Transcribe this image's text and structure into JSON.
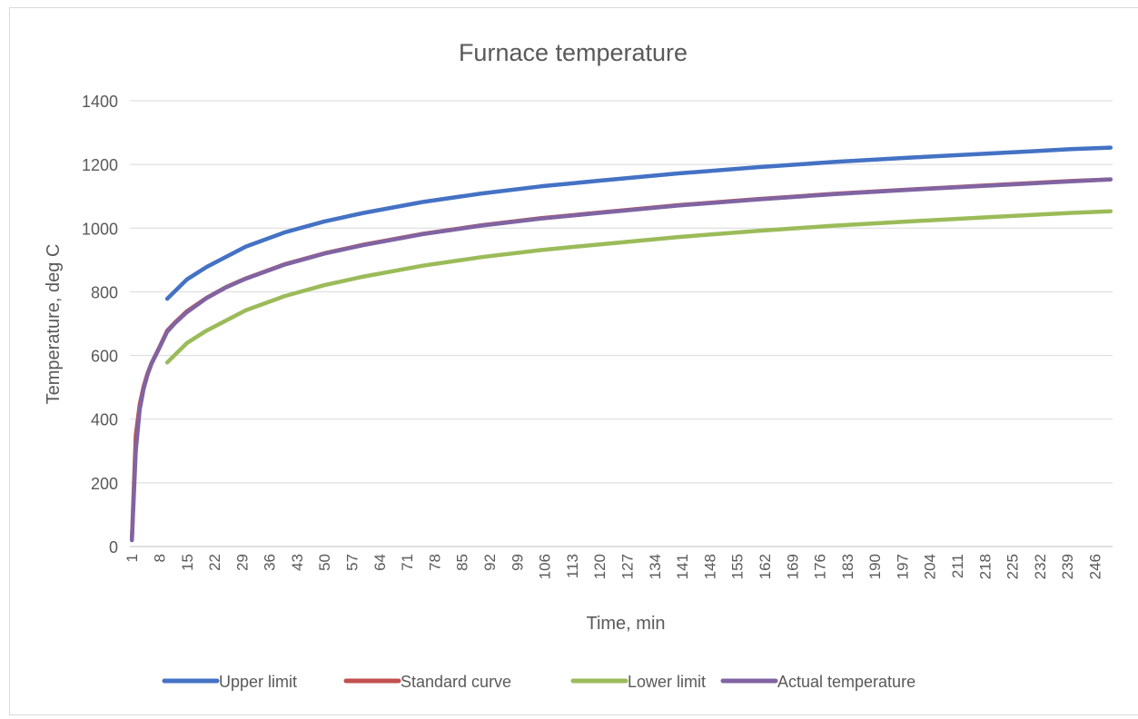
{
  "chart_data": {
    "type": "line",
    "title": "Furnace temperature",
    "xlabel": "Time, min",
    "ylabel": "Temperature, deg C",
    "ylim": [
      0,
      1400
    ],
    "y_ticks": [
      0,
      200,
      400,
      600,
      800,
      1000,
      1200,
      1400
    ],
    "x_range": [
      1,
      250
    ],
    "x_tick_labels": [
      1,
      8,
      15,
      22,
      29,
      36,
      43,
      50,
      57,
      64,
      71,
      78,
      85,
      92,
      99,
      106,
      113,
      120,
      127,
      134,
      141,
      148,
      155,
      162,
      169,
      176,
      183,
      190,
      197,
      204,
      211,
      218,
      225,
      232,
      239,
      246
    ],
    "grid": "horizontal",
    "legend_position": "bottom",
    "series": [
      {
        "name": "Upper limit",
        "color": "#4472c4",
        "x": [
          10,
          15,
          20,
          30,
          40,
          50,
          60,
          75,
          90,
          105,
          120,
          140,
          160,
          180,
          200,
          220,
          240,
          250
        ],
        "values": [
          778,
          839,
          878,
          942,
          987,
          1021,
          1048,
          1082,
          1109,
          1131,
          1149,
          1172,
          1191,
          1208,
          1222,
          1235,
          1248,
          1253
        ]
      },
      {
        "name": "Standard curve",
        "color": "#c0504d",
        "x": [
          1,
          2,
          3,
          4,
          5,
          6,
          8,
          10,
          12,
          15,
          20,
          25,
          30,
          40,
          50,
          60,
          75,
          90,
          105,
          120,
          140,
          160,
          180,
          200,
          220,
          240,
          250
        ],
        "values": [
          20,
          349,
          445,
          502,
          544,
          576,
          626,
          678,
          704,
          739,
          781,
          815,
          842,
          887,
          921,
          948,
          982,
          1009,
          1031,
          1049,
          1072,
          1091,
          1108,
          1122,
          1135,
          1148,
          1153
        ]
      },
      {
        "name": "Lower limit",
        "color": "#9bbb59",
        "x": [
          10,
          15,
          20,
          30,
          40,
          50,
          60,
          75,
          90,
          105,
          120,
          140,
          160,
          180,
          200,
          220,
          240,
          250
        ],
        "values": [
          578,
          639,
          678,
          742,
          787,
          821,
          848,
          882,
          909,
          931,
          949,
          972,
          991,
          1008,
          1022,
          1035,
          1048,
          1053
        ]
      },
      {
        "name": "Actual temperature",
        "color": "#8064a2",
        "x": [
          1,
          2,
          3,
          4,
          5,
          6,
          8,
          10,
          12,
          15,
          20,
          25,
          30,
          40,
          50,
          60,
          75,
          90,
          105,
          120,
          140,
          160,
          180,
          200,
          220,
          240,
          250
        ],
        "values": [
          20,
          300,
          430,
          495,
          540,
          574,
          624,
          675,
          702,
          736,
          780,
          814,
          841,
          886,
          920,
          947,
          981,
          1008,
          1030,
          1048,
          1071,
          1090,
          1107,
          1121,
          1134,
          1147,
          1153
        ]
      }
    ]
  }
}
